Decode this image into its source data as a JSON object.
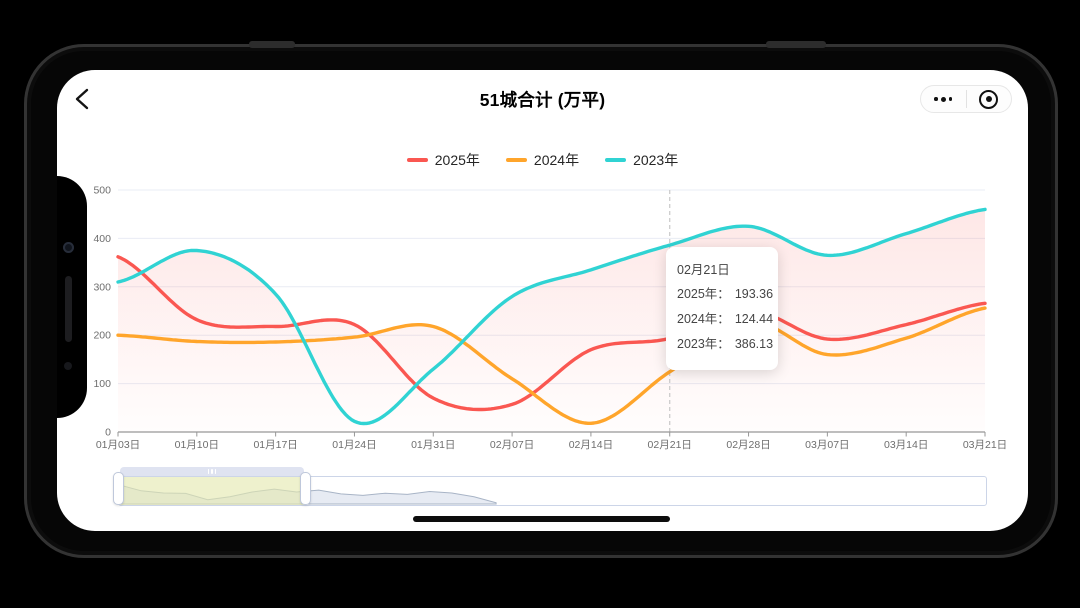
{
  "header": {
    "title": "51城合计 (万平)"
  },
  "tooltip": {
    "date": "02月21日",
    "rows": [
      {
        "label": "2025年：",
        "value": "193.36"
      },
      {
        "label": "2024年：",
        "value": "124.44"
      },
      {
        "label": "2023年：",
        "value": "386.13"
      }
    ]
  },
  "chart_data": {
    "type": "line",
    "title": "51城合计 (万平)",
    "categories": [
      "01月03日",
      "01月10日",
      "01月17日",
      "01月24日",
      "01月31日",
      "02月07日",
      "02月14日",
      "02月21日",
      "02月28日",
      "03月07日",
      "03月14日",
      "03月21日"
    ],
    "series": [
      {
        "name": "2025年",
        "color": "#fa5751",
        "values": [
          362,
          232,
          218,
          222,
          70,
          57,
          170,
          193.36,
          252,
          192,
          222,
          266
        ]
      },
      {
        "name": "2024年",
        "color": "#ffa52b",
        "values": [
          200,
          187,
          186,
          196,
          218,
          110,
          18,
          124.44,
          228,
          160,
          194,
          256
        ]
      },
      {
        "name": "2023年",
        "color": "#30d3d3",
        "values": [
          310,
          375,
          285,
          22,
          130,
          280,
          335,
          386.13,
          425,
          365,
          410,
          460
        ]
      }
    ],
    "ylim": [
      0,
      500
    ],
    "ytick_step": 100,
    "grid": true,
    "legend_position": "top",
    "smooth": true,
    "highlight": {
      "category_index": 7,
      "category": "02月21日"
    },
    "minimap": {
      "profile": [
        0.8,
        0.55,
        0.46,
        0.44,
        0.18,
        0.3,
        0.5,
        0.62,
        0.5,
        0.58,
        0.42,
        0.36,
        0.45,
        0.4,
        0.52,
        0.46,
        0.3,
        0.05
      ],
      "extent": 0.435,
      "window": [
        0,
        0.216
      ]
    }
  },
  "colors": {
    "area_tint": "250,87,81",
    "grid": "#e9ecf4",
    "axis": "#979797",
    "tick_label": "#6e6e6e",
    "dashed_indicator": "#c8c8c8",
    "minimap_fill": "#e7ebf3",
    "minimap_stroke": "#a8b4c6"
  }
}
